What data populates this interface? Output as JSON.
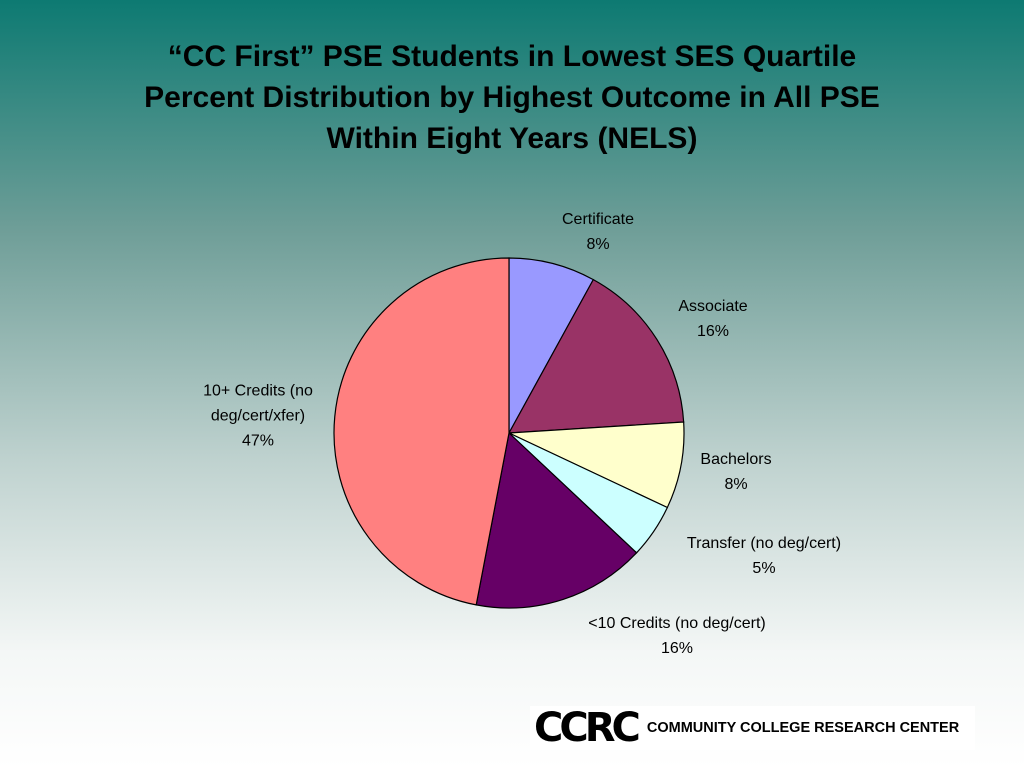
{
  "chart_data": {
    "type": "pie",
    "title": [
      "“CC First” PSE Students in Lowest SES Quartile",
      "Percent Distribution by Highest Outcome in All PSE",
      "Within Eight Years (NELS)"
    ],
    "categories": [
      "Certificate",
      "Associate",
      "Bachelors",
      "Transfer (no deg/cert)",
      "<10 Credits (no deg/cert)",
      "10+ Credits (no deg/cert/xfer)"
    ],
    "values": [
      8,
      16,
      8,
      5,
      16,
      47
    ],
    "value_labels": [
      "8%",
      "16%",
      "8%",
      "5%",
      "16%",
      "47%"
    ],
    "colors": [
      "#9999ff",
      "#993366",
      "#ffffcc",
      "#ccffff",
      "#660066",
      "#ff8080"
    ]
  },
  "logo": {
    "mark": "CCRC",
    "name": "COMMUNITY COLLEGE RESEARCH CENTER"
  }
}
